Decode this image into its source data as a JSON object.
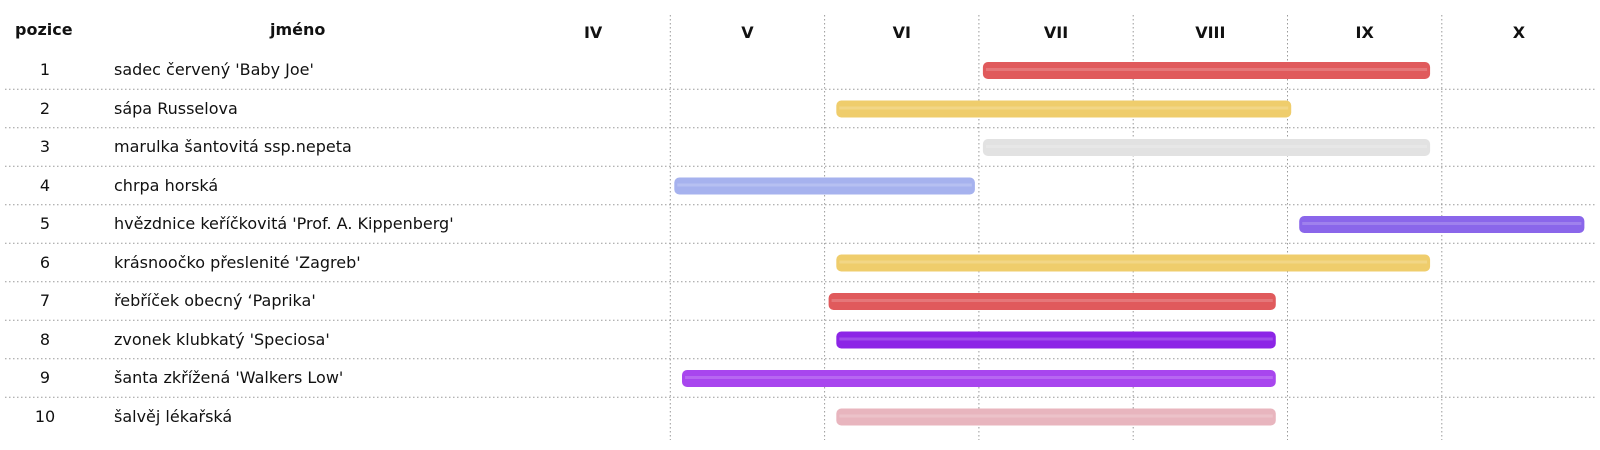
{
  "header": {
    "position": "pozice",
    "name": "jméno"
  },
  "chart_data": {
    "type": "bar",
    "months": [
      "IV",
      "V",
      "VI",
      "VII",
      "VIII",
      "IX",
      "X"
    ],
    "rows": [
      {
        "pos": "1",
        "name": "sadec červený 'Baby Joe'",
        "start": 7.0,
        "end": 9.95,
        "color": "#e05a5c"
      },
      {
        "pos": "2",
        "name": "sápa Russelova",
        "start": 6.05,
        "end": 9.05,
        "color": "#efcd6c"
      },
      {
        "pos": "3",
        "name": "marulka šantovitá ssp.nepeta",
        "start": 7.0,
        "end": 9.95,
        "color": "#e2e2e2"
      },
      {
        "pos": "4",
        "name": "chrpa horská",
        "start": 5.0,
        "end": 7.0,
        "color": "#a6b2ee"
      },
      {
        "pos": "5",
        "name": "hvězdnice keříčkovitá 'Prof. A. Kippenberg'",
        "start": 9.05,
        "end": 10.95,
        "color": "#8a66ea"
      },
      {
        "pos": "6",
        "name": "krásnoočko přeslenité 'Zagreb'",
        "start": 6.05,
        "end": 9.95,
        "color": "#efcd6c"
      },
      {
        "pos": "7",
        "name": "řebříček obecný ‘Paprika'",
        "start": 6.0,
        "end": 8.95,
        "color": "#e05a5c"
      },
      {
        "pos": "8",
        "name": "zvonek klubkatý 'Speciosa'",
        "start": 6.05,
        "end": 8.95,
        "color": "#8c25e6"
      },
      {
        "pos": "9",
        "name": "šanta zkřížená 'Walkers Low'",
        "start": 5.05,
        "end": 8.95,
        "color": "#a846ee"
      },
      {
        "pos": "10",
        "name": "šalvěj lékařská",
        "start": 6.05,
        "end": 8.95,
        "color": "#e8b5be"
      }
    ]
  }
}
